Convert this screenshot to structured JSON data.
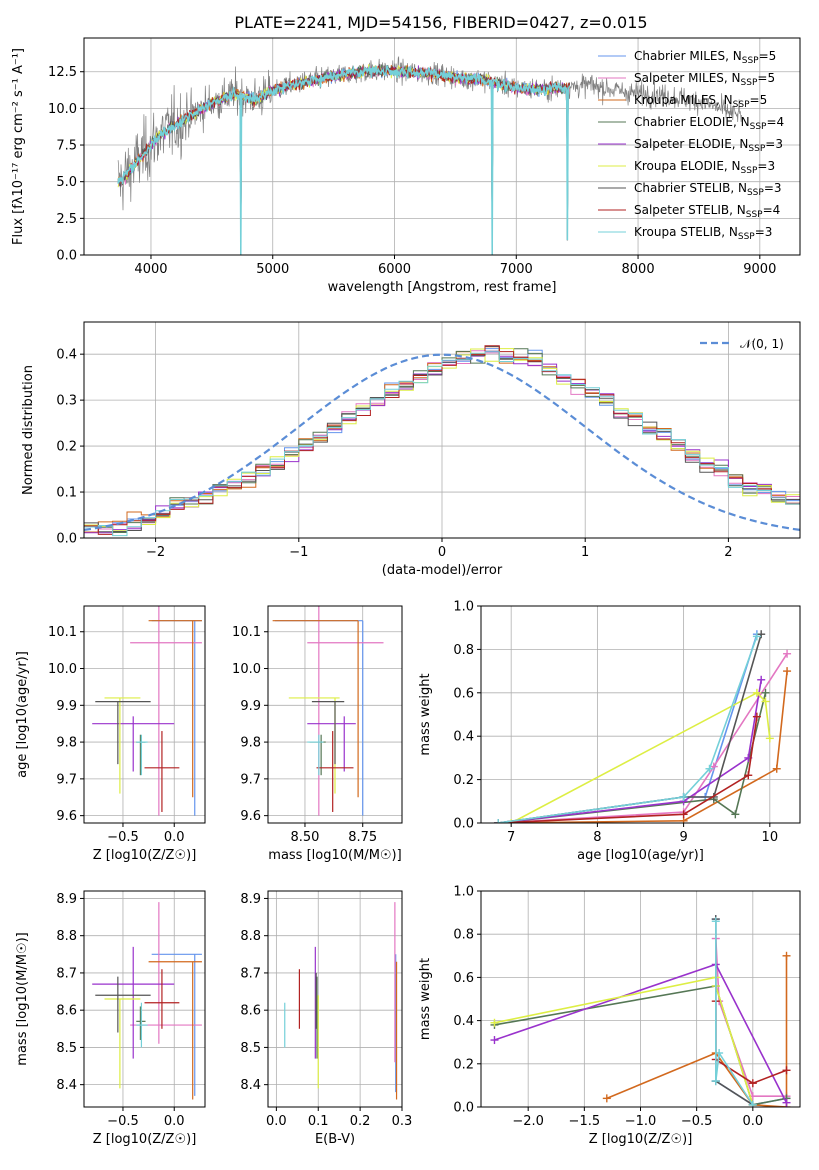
{
  "figure": {
    "title": "PLATE=2241, MJD=54156, FIBERID=0427, z=0.015"
  },
  "colors": [
    "#6495ED",
    "#E377C2",
    "#D2691E",
    "#557755",
    "#9932CC",
    "#DDEE44",
    "#555555",
    "#B22222",
    "#74D0D8"
  ],
  "chart_data": [
    {
      "id": "spectrum",
      "type": "line",
      "title": "PLATE=2241, MJD=54156, FIBERID=0427, z=0.015",
      "xlabel": "wavelength [Angstrom, rest frame]",
      "ylabel": "Flux [fλ10⁻¹⁷ erg cm⁻² s⁻¹ A⁻¹]",
      "xlim": [
        3450,
        9330
      ],
      "ylim": [
        0,
        14.8
      ],
      "xticks": [
        4000,
        5000,
        6000,
        7000,
        8000,
        9000
      ],
      "yticks": [
        0.0,
        2.5,
        5.0,
        7.5,
        10.0,
        12.5
      ],
      "legend_position": "top-right",
      "legend": [
        "Chabrier MILES, N_SSP=5",
        "Salpeter MILES, N_SSP=5",
        "Kroupa MILES, N_SSP=5",
        "Chabrier ELODIE, N_SSP=4",
        "Salpeter ELODIE, N_SSP=3",
        "Kroupa ELODIE, N_SSP=3",
        "Chabrier STELIB, N_SSP=3",
        "Salpeter STELIB, N_SSP=4",
        "Kroupa STELIB, N_SSP=3"
      ],
      "data_continuum": {
        "wavelength": [
          3750,
          3850,
          3950,
          4050,
          4150,
          4300,
          4500,
          4700,
          4860,
          5000,
          5200,
          5500,
          5800,
          6100,
          6400,
          6563,
          6700,
          7000,
          7200,
          7400,
          7600,
          7900,
          8200,
          8500,
          8800
        ],
        "flux": [
          5.0,
          6.0,
          7.0,
          8.0,
          8.6,
          9.4,
          10.4,
          11.0,
          10.6,
          11.2,
          11.7,
          12.2,
          12.6,
          12.5,
          12.3,
          12.0,
          12.0,
          11.4,
          11.3,
          11.4,
          11.6,
          11.1,
          10.9,
          10.5,
          9.6
        ]
      },
      "dips": [
        {
          "wavelength": 4740,
          "flux": 0.0
        },
        {
          "wavelength": 6800,
          "flux": 0.0
        },
        {
          "wavelength": 7420,
          "flux": 1.0
        }
      ]
    },
    {
      "id": "residuals",
      "type": "histogram",
      "xlabel": "(data-model)/error",
      "ylabel": "Normed distribution",
      "xlim": [
        -2.5,
        2.5
      ],
      "ylim": [
        0,
        0.47
      ],
      "xticks": [
        -2,
        -1,
        0,
        1,
        2
      ],
      "yticks": [
        0.0,
        0.1,
        0.2,
        0.3,
        0.4
      ],
      "legend": [
        "𝒩(0, 1)"
      ],
      "bins": {
        "start": -2.5,
        "width": 0.1,
        "count": 50
      },
      "series": [
        {
          "values": [
            0.017,
            0.021,
            0.027,
            0.032,
            0.04,
            0.055,
            0.068,
            0.083,
            0.09,
            0.107,
            0.118,
            0.131,
            0.153,
            0.163,
            0.182,
            0.204,
            0.221,
            0.24,
            0.262,
            0.278,
            0.297,
            0.318,
            0.336,
            0.352,
            0.367,
            0.383,
            0.393,
            0.397,
            0.402,
            0.396,
            0.392,
            0.384,
            0.368,
            0.351,
            0.335,
            0.318,
            0.298,
            0.276,
            0.26,
            0.238,
            0.221,
            0.204,
            0.18,
            0.163,
            0.152,
            0.132,
            0.116,
            0.106,
            0.09,
            0.08
          ]
        }
      ],
      "normal_curve": {
        "mu": 0,
        "sigma": 1
      }
    },
    {
      "id": "age_vs_z",
      "type": "errorbar",
      "xlabel": "Z [log10(Z/Z☉)]",
      "ylabel": "age [log10(age/yr)]",
      "xlim": [
        -0.88,
        0.3
      ],
      "ylim": [
        9.58,
        10.17
      ],
      "xticks": [
        -0.5,
        0.0
      ],
      "yticks": [
        9.6,
        9.7,
        9.8,
        9.9,
        10.0,
        10.1
      ],
      "points": [
        {
          "x": 0.2,
          "y": 10.13,
          "xerr": [
            0.42,
            0.07
          ],
          "yerr": [
            0.53,
            0.0
          ]
        },
        {
          "x": -0.15,
          "y": 10.07,
          "xerr": [
            0.28,
            0.42
          ],
          "yerr": [
            0.47,
            0.1
          ]
        },
        {
          "x": 0.18,
          "y": 10.13,
          "xerr": [
            0.43,
            0.09
          ],
          "yerr": [
            0.48,
            0.0
          ]
        },
        {
          "x": -0.33,
          "y": 9.8,
          "xerr": [
            0.04,
            0.05
          ],
          "yerr": [
            0.09,
            0.02
          ]
        },
        {
          "x": -0.4,
          "y": 9.85,
          "xerr": [
            0.4,
            0.4
          ],
          "yerr": [
            0.13,
            0.02
          ]
        },
        {
          "x": -0.53,
          "y": 9.92,
          "xerr": [
            0.15,
            0.2
          ],
          "yerr": [
            0.26,
            0.0
          ]
        },
        {
          "x": -0.55,
          "y": 9.91,
          "xerr": [
            0.22,
            0.32
          ],
          "yerr": [
            0.17,
            0.0
          ]
        },
        {
          "x": -0.12,
          "y": 9.73,
          "xerr": [
            0.17,
            0.17
          ],
          "yerr": [
            0.12,
            0.1
          ]
        },
        {
          "x": -0.32,
          "y": 9.8,
          "xerr": [
            0.05,
            0.06
          ],
          "yerr": [
            0.09,
            0.02
          ]
        }
      ]
    },
    {
      "id": "age_vs_mass",
      "type": "errorbar",
      "xlabel": "mass [log10(M/M☉)]",
      "ylabel": "",
      "xlim": [
        8.34,
        8.92
      ],
      "ylim": [
        9.58,
        10.17
      ],
      "xticks": [
        8.5,
        8.75
      ],
      "yticks": [
        9.6,
        9.7,
        9.8,
        9.9,
        10.0,
        10.1
      ],
      "points": [
        {
          "x": 8.75,
          "y": 10.13,
          "xerr": [
            0.38,
            0.0
          ],
          "yerr": [
            0.53,
            0.0
          ]
        },
        {
          "x": 8.56,
          "y": 10.07,
          "xerr": [
            0.05,
            0.28
          ],
          "yerr": [
            0.47,
            0.1
          ]
        },
        {
          "x": 8.73,
          "y": 10.13,
          "xerr": [
            0.37,
            0.0
          ],
          "yerr": [
            0.48,
            0.0
          ]
        },
        {
          "x": 8.57,
          "y": 9.8,
          "xerr": [
            0.05,
            0.02
          ],
          "yerr": [
            0.09,
            0.02
          ]
        },
        {
          "x": 8.67,
          "y": 9.85,
          "xerr": [
            0.16,
            0.05
          ],
          "yerr": [
            0.13,
            0.02
          ]
        },
        {
          "x": 8.63,
          "y": 9.92,
          "xerr": [
            0.2,
            0.02
          ],
          "yerr": [
            0.26,
            0.0
          ]
        },
        {
          "x": 8.63,
          "y": 9.91,
          "xerr": [
            0.1,
            0.04
          ],
          "yerr": [
            0.17,
            0.0
          ]
        },
        {
          "x": 8.62,
          "y": 9.73,
          "xerr": [
            0.07,
            0.09
          ],
          "yerr": [
            0.12,
            0.1
          ]
        },
        {
          "x": 8.56,
          "y": 9.8,
          "xerr": [
            0.05,
            0.02
          ],
          "yerr": [
            0.09,
            0.02
          ]
        }
      ]
    },
    {
      "id": "weight_vs_age",
      "type": "line",
      "xlabel": "age  [log10(age/yr)]",
      "ylabel": "mass weight",
      "xlim": [
        6.65,
        10.35
      ],
      "ylim": [
        0.0,
        1.0
      ],
      "xticks": [
        7,
        8,
        9,
        10
      ],
      "yticks": [
        0.0,
        0.2,
        0.4,
        0.6,
        0.8,
        1.0
      ],
      "series": [
        {
          "x": [
            6.85,
            9.0,
            9.25,
            9.85
          ],
          "y": [
            0.0,
            0.12,
            0.12,
            0.87
          ]
        },
        {
          "x": [
            6.85,
            9.0,
            9.35,
            10.2
          ],
          "y": [
            0.0,
            0.05,
            0.26,
            0.78
          ]
        },
        {
          "x": [
            6.85,
            9.0,
            10.08,
            10.2
          ],
          "y": [
            0.0,
            0.01,
            0.25,
            0.7
          ]
        },
        {
          "x": [
            6.85,
            9.35,
            9.6,
            9.95
          ],
          "y": [
            0.0,
            0.11,
            0.04,
            0.6
          ]
        },
        {
          "x": [
            6.85,
            9.0,
            9.75,
            9.9
          ],
          "y": [
            0.0,
            0.1,
            0.3,
            0.66
          ]
        },
        {
          "x": [
            7.0,
            9.85,
            9.95,
            10.0
          ],
          "y": [
            0.0,
            0.6,
            0.56,
            0.39
          ]
        },
        {
          "x": [
            6.85,
            9.0,
            9.35,
            9.9
          ],
          "y": [
            0.0,
            0.12,
            0.12,
            0.87
          ]
        },
        {
          "x": [
            6.85,
            9.0,
            9.75,
            9.85
          ],
          "y": [
            0.0,
            0.04,
            0.22,
            0.49
          ]
        },
        {
          "x": [
            6.85,
            9.0,
            9.3,
            9.85
          ],
          "y": [
            0.0,
            0.12,
            0.25,
            0.86
          ]
        }
      ]
    },
    {
      "id": "mass_vs_z",
      "type": "errorbar",
      "xlabel": "Z [log10(Z/Z☉)]",
      "ylabel": "mass [log10(M/M☉)]",
      "xlim": [
        -0.88,
        0.3
      ],
      "ylim": [
        8.34,
        8.92
      ],
      "xticks": [
        -0.5,
        0.0
      ],
      "yticks": [
        8.4,
        8.5,
        8.6,
        8.7,
        8.8,
        8.9
      ],
      "points": [
        {
          "x": 0.2,
          "y": 8.75,
          "xerr": [
            0.42,
            0.07
          ],
          "yerr": [
            0.38,
            0.0
          ]
        },
        {
          "x": -0.15,
          "y": 8.56,
          "xerr": [
            0.28,
            0.42
          ],
          "yerr": [
            0.05,
            0.33
          ]
        },
        {
          "x": 0.18,
          "y": 8.73,
          "xerr": [
            0.43,
            0.09
          ],
          "yerr": [
            0.37,
            0.0
          ]
        },
        {
          "x": -0.33,
          "y": 8.57,
          "xerr": [
            0.04,
            0.05
          ],
          "yerr": [
            0.05,
            0.04
          ]
        },
        {
          "x": -0.4,
          "y": 8.67,
          "xerr": [
            0.4,
            0.4
          ],
          "yerr": [
            0.2,
            0.1
          ]
        },
        {
          "x": -0.53,
          "y": 8.63,
          "xerr": [
            0.15,
            0.2
          ],
          "yerr": [
            0.24,
            0.0
          ]
        },
        {
          "x": -0.55,
          "y": 8.64,
          "xerr": [
            0.22,
            0.32
          ],
          "yerr": [
            0.1,
            0.05
          ]
        },
        {
          "x": -0.12,
          "y": 8.62,
          "xerr": [
            0.17,
            0.17
          ],
          "yerr": [
            0.07,
            0.09
          ]
        },
        {
          "x": -0.32,
          "y": 8.56,
          "xerr": [
            0.05,
            0.06
          ],
          "yerr": [
            0.06,
            0.06
          ]
        }
      ]
    },
    {
      "id": "mass_vs_ebv",
      "type": "errorbar",
      "xlabel": "E(B-V)",
      "ylabel": "",
      "xlim": [
        -0.02,
        0.3
      ],
      "ylim": [
        8.34,
        8.92
      ],
      "xticks": [
        0.0,
        0.1,
        0.2,
        0.3
      ],
      "yticks": [
        8.4,
        8.5,
        8.6,
        8.7,
        8.8,
        8.9
      ],
      "points": [
        {
          "x": 0.285,
          "y": 8.75,
          "xerr": [
            0.0,
            0.0
          ],
          "yerr": [
            0.37,
            0.0
          ]
        },
        {
          "x": 0.283,
          "y": 8.56,
          "xerr": [
            0.0,
            0.0
          ],
          "yerr": [
            0.1,
            0.33
          ]
        },
        {
          "x": 0.287,
          "y": 8.73,
          "xerr": [
            0.0,
            0.0
          ],
          "yerr": [
            0.37,
            0.0
          ]
        },
        {
          "x": 0.097,
          "y": 8.57,
          "xerr": [
            0.0,
            0.0
          ],
          "yerr": [
            0.1,
            0.12
          ]
        },
        {
          "x": 0.093,
          "y": 8.67,
          "xerr": [
            0.0,
            0.0
          ],
          "yerr": [
            0.2,
            0.1
          ]
        },
        {
          "x": 0.1,
          "y": 8.6,
          "xerr": [
            0.0,
            0.0
          ],
          "yerr": [
            0.21,
            0.04
          ]
        },
        {
          "x": 0.095,
          "y": 8.65,
          "xerr": [
            0.0,
            0.0
          ],
          "yerr": [
            0.1,
            0.05
          ]
        },
        {
          "x": 0.055,
          "y": 8.62,
          "xerr": [
            0.0,
            0.0
          ],
          "yerr": [
            0.07,
            0.09
          ]
        },
        {
          "x": 0.02,
          "y": 8.56,
          "xerr": [
            0.0,
            0.0
          ],
          "yerr": [
            0.06,
            0.06
          ]
        }
      ]
    },
    {
      "id": "weight_vs_z",
      "type": "line",
      "xlabel": "Z [log10(Z/Z☉)]",
      "ylabel": "mass weight",
      "xlim": [
        -2.42,
        0.42
      ],
      "ylim": [
        0.0,
        1.0
      ],
      "xticks": [
        -2.0,
        -1.5,
        -1.0,
        -0.5,
        0.0
      ],
      "yticks": [
        0.0,
        0.2,
        0.4,
        0.6,
        0.8,
        1.0
      ],
      "series": [
        {
          "x": [
            -0.33,
            -0.33,
            0.0,
            0.3
          ],
          "y": [
            0.87,
            0.12,
            0.01,
            0.04
          ]
        },
        {
          "x": [
            -0.33,
            -0.3,
            0.0,
            0.3
          ],
          "y": [
            0.78,
            0.49,
            0.05,
            0.05
          ]
        },
        {
          "x": [
            -1.3,
            -0.33,
            0.0,
            0.3,
            0.3
          ],
          "y": [
            0.04,
            0.25,
            0.01,
            0.0,
            0.7
          ]
        },
        {
          "x": [
            -2.3,
            -0.33,
            0.0,
            0.3
          ],
          "y": [
            0.38,
            0.56,
            0.01,
            0.04
          ]
        },
        {
          "x": [
            -2.3,
            -0.33,
            0.3
          ],
          "y": [
            0.31,
            0.66,
            0.02
          ]
        },
        {
          "x": [
            -2.3,
            -0.33,
            -0.33,
            0.0
          ],
          "y": [
            0.39,
            0.6,
            0.56,
            0.01
          ]
        },
        {
          "x": [
            -0.33,
            -0.33,
            0.0
          ],
          "y": [
            0.87,
            0.12,
            0.01
          ]
        },
        {
          "x": [
            -0.33,
            -0.33,
            0.0,
            0.3
          ],
          "y": [
            0.49,
            0.22,
            0.11,
            0.17
          ]
        },
        {
          "x": [
            -0.33,
            -0.33,
            -0.3,
            0.0
          ],
          "y": [
            0.86,
            0.12,
            0.25,
            0.01
          ]
        }
      ]
    }
  ]
}
